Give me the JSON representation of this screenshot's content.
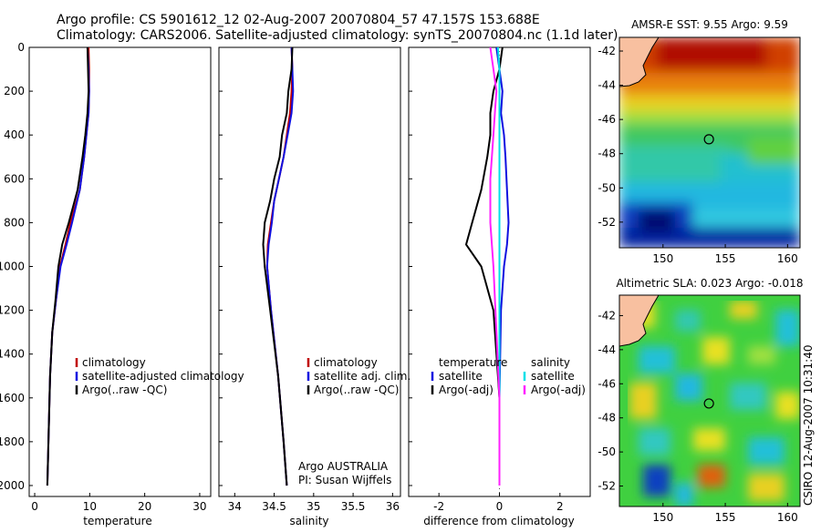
{
  "header": {
    "line1": "Argo profile: CS 5901612_12 02-Aug-2007 20070804_57 47.157S 153.688E",
    "line2": "Climatology: CARS2006. Satellite-adjusted climatology: synTS_20070804.nc (1.1d later)"
  },
  "side_label": "CSIRO 12-Aug-2007 10:31:40",
  "colors": {
    "climatology": "#c00000",
    "satellite": "#1010e0",
    "argo": "#000000",
    "sal_satellite": "#00e0e8",
    "sal_argo": "#ff20ff",
    "land": "#f8c0a0"
  },
  "chart_data": [
    {
      "type": "line",
      "xlabel": "temperature",
      "xlim": [
        -1,
        32
      ],
      "ylim": [
        2050,
        0
      ],
      "xticks": [
        "0",
        "10",
        "20",
        "30"
      ],
      "yticks": [
        "0",
        "200",
        "400",
        "600",
        "800",
        "1000",
        "1200",
        "1400",
        "1600",
        "1800",
        "2000"
      ],
      "legend": [
        "climatology",
        "satellite-adjusted climatology",
        "Argo(..raw -QC)"
      ],
      "series": [
        {
          "name": "climatology",
          "color": "#c00000",
          "x": [
            9.8,
            9.9,
            9.9,
            9.8,
            9.4,
            9.0,
            8.2,
            6.5,
            5.6,
            4.6,
            3.9,
            3.2,
            2.8,
            2.5,
            2.3
          ],
          "y": [
            0,
            100,
            200,
            300,
            400,
            500,
            650,
            800,
            900,
            1000,
            1150,
            1300,
            1500,
            1800,
            2000
          ]
        },
        {
          "name": "satellite-adjusted climatology",
          "color": "#1010e0",
          "x": [
            9.6,
            9.8,
            9.9,
            9.8,
            9.4,
            9.0,
            8.2,
            6.8,
            5.8,
            4.7,
            3.9,
            3.2,
            2.8,
            2.5,
            2.3
          ],
          "y": [
            0,
            100,
            200,
            300,
            400,
            500,
            650,
            800,
            900,
            1000,
            1150,
            1300,
            1500,
            1800,
            2000
          ]
        },
        {
          "name": "Argo(..raw -QC)",
          "color": "#000000",
          "x": [
            9.6,
            9.7,
            9.8,
            9.6,
            9.2,
            8.7,
            7.8,
            6.2,
            5.0,
            4.3,
            3.8,
            3.2,
            2.8,
            2.5,
            2.3
          ],
          "y": [
            0,
            100,
            200,
            300,
            400,
            500,
            650,
            800,
            900,
            1000,
            1150,
            1300,
            1500,
            1800,
            2000
          ]
        }
      ]
    },
    {
      "type": "line",
      "xlabel": "salinity",
      "xlim": [
        33.8,
        36.1
      ],
      "ylim": [
        2050,
        0
      ],
      "xticks": [
        "34",
        "34.5",
        "35",
        "35.5",
        "36"
      ],
      "legend": [
        "climatology",
        "satellite adj. clim.",
        "Argo(..raw -QC)"
      ],
      "annotation": [
        "Argo AUSTRALIA",
        "PI: Susan Wijffels"
      ],
      "series": [
        {
          "name": "climatology",
          "color": "#c00000",
          "x": [
            34.72,
            34.73,
            34.72,
            34.7,
            34.66,
            34.62,
            34.56,
            34.5,
            34.46,
            34.42,
            34.41,
            34.46,
            34.55,
            34.62,
            34.66
          ],
          "y": [
            0,
            100,
            200,
            300,
            400,
            500,
            600,
            700,
            800,
            900,
            1000,
            1200,
            1500,
            1800,
            2000
          ]
        },
        {
          "name": "satellite adj. clim.",
          "color": "#1010e0",
          "x": [
            34.72,
            34.73,
            34.74,
            34.72,
            34.67,
            34.62,
            34.56,
            34.5,
            34.47,
            34.43,
            34.41,
            34.46,
            34.55,
            34.62,
            34.66
          ],
          "y": [
            0,
            100,
            200,
            300,
            400,
            500,
            600,
            700,
            800,
            900,
            1000,
            1200,
            1500,
            1800,
            2000
          ]
        },
        {
          "name": "Argo(..raw -QC)",
          "color": "#000000",
          "x": [
            34.73,
            34.72,
            34.68,
            34.66,
            34.6,
            34.57,
            34.5,
            34.45,
            34.38,
            34.36,
            34.38,
            34.45,
            34.55,
            34.62,
            34.66
          ],
          "y": [
            0,
            100,
            200,
            300,
            400,
            500,
            600,
            700,
            800,
            900,
            1000,
            1200,
            1500,
            1800,
            2000
          ]
        }
      ]
    },
    {
      "type": "line",
      "xlabel": "difference from climatology",
      "xlim": [
        -3,
        3
      ],
      "ylim": [
        2050,
        0
      ],
      "xticks": [
        "-2",
        "0",
        "2"
      ],
      "legend_temperature": {
        "heading": "temperature",
        "items": [
          "satellite",
          "Argo(-adj)"
        ]
      },
      "legend_salinity": {
        "heading": "salinity",
        "items": [
          "satellite",
          "Argo(-adj)"
        ]
      },
      "series": [
        {
          "name": "temperature satellite",
          "color": "#1010e0",
          "x": [
            -0.1,
            0.0,
            0.1,
            0.05,
            0.15,
            0.2,
            0.25,
            0.3,
            0.25,
            0.15,
            0.05,
            0.0,
            0.0
          ],
          "y": [
            0,
            100,
            200,
            300,
            400,
            500,
            650,
            800,
            900,
            1000,
            1200,
            1600,
            2000
          ]
        },
        {
          "name": "temperature Argo(-adj)",
          "color": "#000000",
          "x": [
            0.1,
            0.0,
            -0.2,
            -0.3,
            -0.3,
            -0.4,
            -0.6,
            -0.9,
            -1.1,
            -0.6,
            -0.2,
            0.0,
            0.0
          ],
          "y": [
            0,
            100,
            200,
            300,
            400,
            500,
            650,
            800,
            900,
            1000,
            1200,
            1600,
            2000
          ]
        },
        {
          "name": "salinity satellite",
          "color": "#00e0e8",
          "x": [
            -0.05,
            0.0,
            0.0,
            0.0,
            0.0,
            0.0,
            0.0,
            0.0,
            0.0,
            0.0,
            0.0
          ],
          "y": [
            0,
            100,
            200,
            300,
            400,
            600,
            800,
            1000,
            1300,
            1600,
            2000
          ]
        },
        {
          "name": "salinity Argo(-adj)",
          "color": "#ff20ff",
          "x": [
            -0.3,
            -0.2,
            -0.1,
            -0.15,
            -0.2,
            -0.3,
            -0.3,
            -0.2,
            -0.1,
            0.0,
            0.0
          ],
          "y": [
            0,
            100,
            200,
            300,
            400,
            600,
            800,
            1000,
            1300,
            1600,
            2000
          ]
        }
      ]
    },
    {
      "type": "heatmap",
      "title": "AMSR-E SST: 9.55 Argo: 9.59",
      "xlim": [
        146.5,
        161
      ],
      "ylim": [
        -53.5,
        -41.2
      ],
      "xticks": [
        "150",
        "155",
        "160"
      ],
      "yticks": [
        "-42",
        "-44",
        "-46",
        "-48",
        "-50",
        "-52"
      ],
      "marker": {
        "lon": 153.688,
        "lat": -47.157
      }
    },
    {
      "type": "heatmap",
      "title": "Altimetric SLA: 0.023 Argo: -0.018",
      "xlim": [
        146.5,
        161
      ],
      "ylim": [
        -53.2,
        -40.8
      ],
      "xticks": [
        "150",
        "155",
        "160"
      ],
      "yticks": [
        "-42",
        "-44",
        "-46",
        "-48",
        "-50",
        "-52"
      ],
      "marker": {
        "lon": 153.688,
        "lat": -47.157
      }
    }
  ]
}
